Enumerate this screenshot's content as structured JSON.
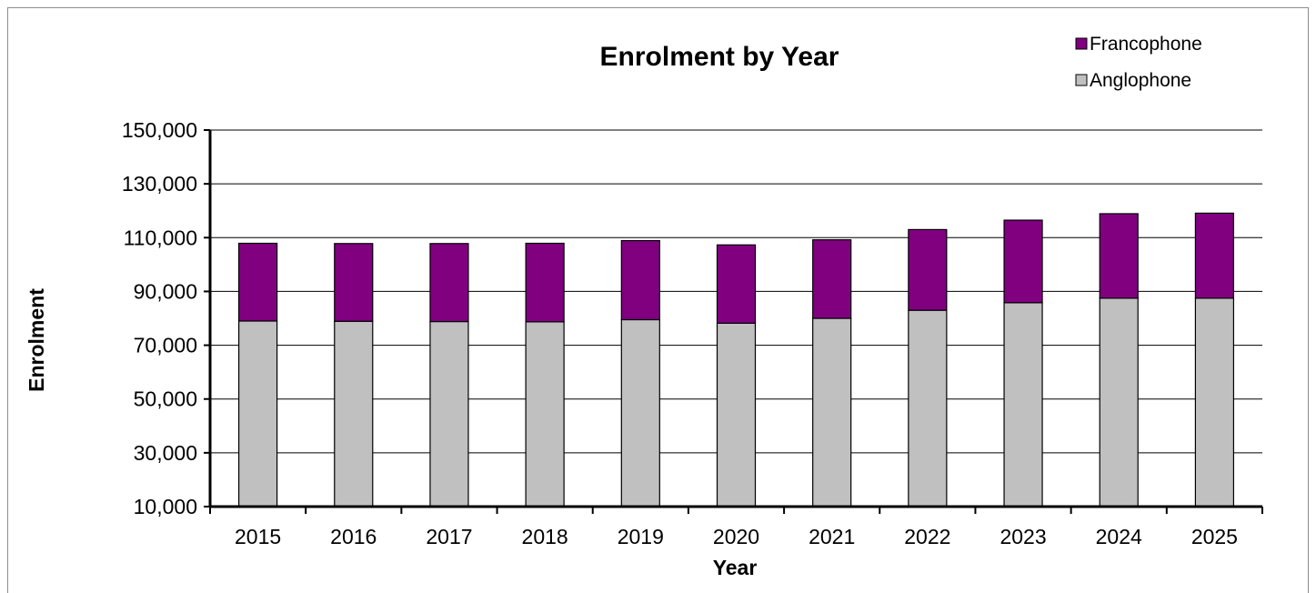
{
  "chart_data": {
    "type": "bar",
    "stacked": true,
    "title": "Enrolment by Year",
    "xlabel": "Year",
    "ylabel": "Enrolment",
    "ylim": [
      10000,
      150000
    ],
    "yticks": [
      10000,
      30000,
      50000,
      70000,
      90000,
      110000,
      130000,
      150000
    ],
    "ytick_labels": [
      "10,000",
      "30,000",
      "50,000",
      "70,000",
      "90,000",
      "110,000",
      "130,000",
      "150,000"
    ],
    "grid": true,
    "legend_position": "top-right",
    "categories": [
      "2015",
      "2016",
      "2017",
      "2018",
      "2019",
      "2020",
      "2021",
      "2022",
      "2023",
      "2024",
      "2025"
    ],
    "series": [
      {
        "name": "Anglophone",
        "color": "#c0c0c0",
        "values": [
          69000,
          68900,
          68800,
          68700,
          69500,
          68200,
          70000,
          73000,
          75800,
          77500,
          77500
        ]
      },
      {
        "name": "Francophone",
        "color": "#800080",
        "values": [
          28900,
          28900,
          29000,
          29200,
          29400,
          29100,
          29200,
          30000,
          30700,
          31400,
          31600
        ]
      }
    ],
    "legend_order": [
      "Francophone",
      "Anglophone"
    ]
  }
}
